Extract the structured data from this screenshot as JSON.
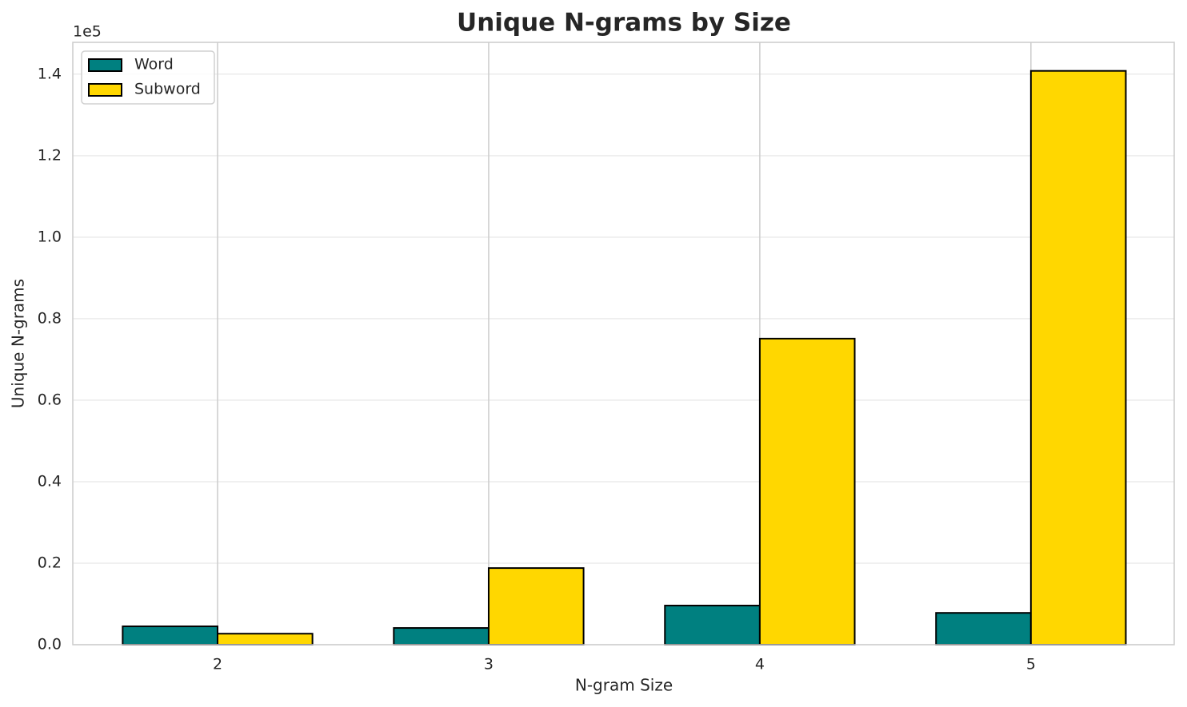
{
  "chart_data": {
    "type": "bar",
    "title": "Unique N-grams by Size",
    "x_label": "N-gram Size",
    "y_label": "Unique N-grams",
    "y_offset_label": "1e5",
    "categories": [
      "2",
      "3",
      "4",
      "5"
    ],
    "series": [
      {
        "name": "Word",
        "color": "#008080",
        "values": [
          0.045,
          0.041,
          0.096,
          0.078
        ]
      },
      {
        "name": "Subword",
        "color": "#ffd700",
        "values": [
          0.027,
          0.188,
          0.751,
          1.408
        ]
      }
    ],
    "ylim": [
      0,
      1.478
    ],
    "yticks": [
      {
        "value": 0,
        "label": "0.0"
      },
      0.2,
      0.4,
      0.6,
      0.8,
      {
        "value": 1,
        "label": "1.0"
      },
      1.2,
      1.4
    ],
    "grid": true,
    "legend": "upper left"
  }
}
